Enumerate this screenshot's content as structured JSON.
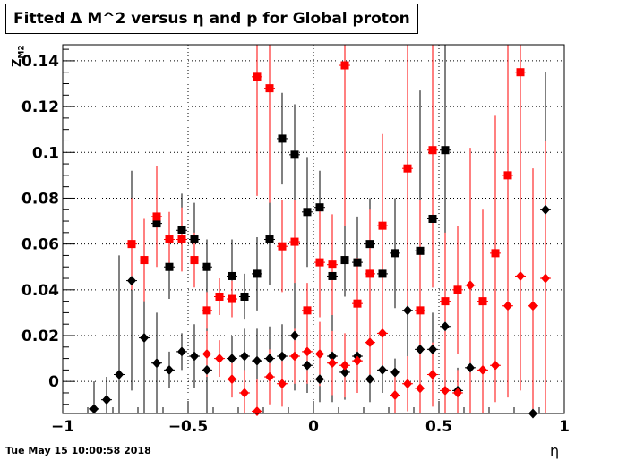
{
  "title": "Fitted Δ M^2 versus η and p for Global proton",
  "timestamp": "Tue May 15 10:00:58 2018",
  "chart_data": {
    "type": "scatter",
    "title": "Fitted Δ M^2 versus η and p for Global proton",
    "xlabel": "η",
    "ylabel_main": "Z",
    "ylabel_sub": "M2",
    "xlim": [
      -1,
      1
    ],
    "ylim": [
      -0.014,
      0.147
    ],
    "x_ticks": [
      -1,
      -0.5,
      0,
      0.5,
      1
    ],
    "x_tick_labels": [
      "−1",
      "−0.5",
      "0",
      "0.5",
      "1"
    ],
    "y_ticks": [
      0,
      0.02,
      0.04,
      0.06,
      0.08,
      0.1,
      0.12,
      0.14
    ],
    "y_tick_labels": [
      "0",
      "0.02",
      "0.04",
      "0.06",
      "0.08",
      "0.1",
      "0.12",
      "0.14"
    ],
    "grid": true,
    "series": [
      {
        "marker": "square",
        "color": "#000000",
        "points": [
          {
            "x": -0.625,
            "y": 0.069,
            "err": 0.012
          },
          {
            "x": -0.575,
            "y": 0.05,
            "err": 0.014
          },
          {
            "x": -0.525,
            "y": 0.066,
            "err": 0.016
          },
          {
            "x": -0.475,
            "y": 0.062,
            "err": 0.016
          },
          {
            "x": -0.425,
            "y": 0.05,
            "err": 0.012
          },
          {
            "x": -0.325,
            "y": 0.046,
            "err": 0.016
          },
          {
            "x": -0.275,
            "y": 0.037,
            "err": 0.01
          },
          {
            "x": -0.225,
            "y": 0.047,
            "err": 0.016
          },
          {
            "x": -0.175,
            "y": 0.062,
            "err": 0.02
          },
          {
            "x": -0.125,
            "y": 0.106,
            "err": 0.02
          },
          {
            "x": -0.075,
            "y": 0.099,
            "err": 0.022
          },
          {
            "x": -0.025,
            "y": 0.074,
            "err": 0.024
          },
          {
            "x": 0.025,
            "y": 0.076,
            "err": 0.016
          },
          {
            "x": 0.075,
            "y": 0.046,
            "err": 0.01
          },
          {
            "x": 0.125,
            "y": 0.053,
            "err": 0.016
          },
          {
            "x": 0.175,
            "y": 0.052,
            "err": 0.02
          },
          {
            "x": 0.225,
            "y": 0.06,
            "err": 0.02
          },
          {
            "x": 0.275,
            "y": 0.047,
            "err": 0.02
          },
          {
            "x": 0.325,
            "y": 0.056,
            "err": 0.024
          },
          {
            "x": 0.425,
            "y": 0.057,
            "err": 0.07
          },
          {
            "x": 0.475,
            "y": 0.071,
            "err": 0.03
          },
          {
            "x": 0.525,
            "y": 0.101,
            "err": 0.06
          }
        ]
      },
      {
        "marker": "diamond",
        "color": "#000000",
        "points": [
          {
            "x": -0.875,
            "y": -0.012,
            "err": 0.012
          },
          {
            "x": -0.825,
            "y": -0.008,
            "err": 0.01
          },
          {
            "x": -0.775,
            "y": 0.003,
            "err": 0.052
          },
          {
            "x": -0.725,
            "y": 0.044,
            "err": 0.048
          },
          {
            "x": -0.675,
            "y": 0.019,
            "err": 0.05
          },
          {
            "x": -0.625,
            "y": 0.008,
            "err": 0.022
          },
          {
            "x": -0.575,
            "y": 0.005,
            "err": 0.008
          },
          {
            "x": -0.525,
            "y": 0.013,
            "err": 0.008
          },
          {
            "x": -0.475,
            "y": 0.011,
            "err": 0.014
          },
          {
            "x": -0.425,
            "y": 0.005,
            "err": 0.024
          },
          {
            "x": -0.325,
            "y": 0.01,
            "err": 0.01
          },
          {
            "x": -0.275,
            "y": 0.011,
            "err": 0.012
          },
          {
            "x": -0.225,
            "y": 0.009,
            "err": 0.014
          },
          {
            "x": -0.175,
            "y": 0.01,
            "err": 0.014
          },
          {
            "x": -0.125,
            "y": 0.011,
            "err": 0.014
          },
          {
            "x": -0.075,
            "y": 0.02,
            "err": 0.024
          },
          {
            "x": -0.025,
            "y": 0.007,
            "err": 0.012
          },
          {
            "x": 0.025,
            "y": 0.001,
            "err": 0.01
          },
          {
            "x": 0.075,
            "y": 0.011,
            "err": 0.02
          },
          {
            "x": 0.125,
            "y": 0.004,
            "err": 0.012
          },
          {
            "x": 0.175,
            "y": 0.011,
            "err": 0.014
          },
          {
            "x": 0.225,
            "y": 0.001,
            "err": 0.01
          },
          {
            "x": 0.275,
            "y": 0.005,
            "err": 0.01
          },
          {
            "x": 0.325,
            "y": 0.004,
            "err": 0.006
          },
          {
            "x": 0.375,
            "y": 0.031,
            "err": 0.03
          },
          {
            "x": 0.425,
            "y": 0.014,
            "err": 0.032
          },
          {
            "x": 0.475,
            "y": 0.014,
            "err": 0.016
          },
          {
            "x": 0.525,
            "y": 0.024,
            "err": 0.024
          },
          {
            "x": 0.575,
            "y": -0.004,
            "err": 0.01
          },
          {
            "x": 0.625,
            "y": 0.006,
            "err": 0.02
          },
          {
            "x": 0.875,
            "y": -0.014,
            "err": 0.012
          },
          {
            "x": 0.925,
            "y": 0.075,
            "err": 0.06
          }
        ]
      },
      {
        "marker": "square",
        "color": "#ff0000",
        "points": [
          {
            "x": -0.725,
            "y": 0.06,
            "err": 0.02
          },
          {
            "x": -0.675,
            "y": 0.053,
            "err": 0.018
          },
          {
            "x": -0.625,
            "y": 0.072,
            "err": 0.022
          },
          {
            "x": -0.575,
            "y": 0.062,
            "err": 0.012
          },
          {
            "x": -0.525,
            "y": 0.062,
            "err": 0.014
          },
          {
            "x": -0.475,
            "y": 0.053,
            "err": 0.012
          },
          {
            "x": -0.425,
            "y": 0.031,
            "err": 0.008
          },
          {
            "x": -0.375,
            "y": 0.037,
            "err": 0.008
          },
          {
            "x": -0.325,
            "y": 0.036,
            "err": 0.008
          },
          {
            "x": -0.225,
            "y": 0.133,
            "err": 0.052
          },
          {
            "x": -0.175,
            "y": 0.128,
            "err": 0.05
          },
          {
            "x": -0.125,
            "y": 0.059,
            "err": 0.02
          },
          {
            "x": -0.075,
            "y": 0.061,
            "err": 0.018
          },
          {
            "x": -0.025,
            "y": 0.031,
            "err": 0.012
          },
          {
            "x": 0.025,
            "y": 0.052,
            "err": 0.024
          },
          {
            "x": 0.075,
            "y": 0.051,
            "err": 0.022
          },
          {
            "x": 0.125,
            "y": 0.138,
            "err": 0.07
          },
          {
            "x": 0.175,
            "y": 0.034,
            "err": 0.02
          },
          {
            "x": 0.225,
            "y": 0.047,
            "err": 0.028
          },
          {
            "x": 0.275,
            "y": 0.068,
            "err": 0.04
          },
          {
            "x": 0.375,
            "y": 0.093,
            "err": 0.06
          },
          {
            "x": 0.425,
            "y": 0.031,
            "err": 0.048
          },
          {
            "x": 0.475,
            "y": 0.101,
            "err": 0.06
          },
          {
            "x": 0.525,
            "y": 0.035,
            "err": 0.03
          },
          {
            "x": 0.575,
            "y": 0.04,
            "err": 0.028
          },
          {
            "x": 0.675,
            "y": 0.035,
            "err": 0.04
          },
          {
            "x": 0.725,
            "y": 0.056,
            "err": 0.06
          },
          {
            "x": 0.775,
            "y": 0.09,
            "err": 0.06
          },
          {
            "x": 0.825,
            "y": 0.135,
            "err": 0.1
          }
        ]
      },
      {
        "marker": "diamond",
        "color": "#ff0000",
        "points": [
          {
            "x": -0.425,
            "y": 0.012,
            "err": 0.01
          },
          {
            "x": -0.375,
            "y": 0.01,
            "err": 0.008
          },
          {
            "x": -0.325,
            "y": 0.001,
            "err": 0.008
          },
          {
            "x": -0.275,
            "y": -0.005,
            "err": 0.01
          },
          {
            "x": -0.225,
            "y": -0.013,
            "err": 0.014
          },
          {
            "x": -0.175,
            "y": 0.002,
            "err": 0.012
          },
          {
            "x": -0.125,
            "y": -0.001,
            "err": 0.01
          },
          {
            "x": -0.075,
            "y": 0.011,
            "err": 0.012
          },
          {
            "x": -0.025,
            "y": 0.013,
            "err": 0.014
          },
          {
            "x": 0.025,
            "y": 0.012,
            "err": 0.014
          },
          {
            "x": 0.075,
            "y": 0.008,
            "err": 0.014
          },
          {
            "x": 0.125,
            "y": 0.007,
            "err": 0.014
          },
          {
            "x": 0.175,
            "y": 0.009,
            "err": 0.014
          },
          {
            "x": 0.225,
            "y": 0.017,
            "err": 0.016
          },
          {
            "x": 0.275,
            "y": 0.021,
            "err": 0.016
          },
          {
            "x": 0.325,
            "y": -0.006,
            "err": 0.01
          },
          {
            "x": 0.375,
            "y": -0.001,
            "err": 0.012
          },
          {
            "x": 0.425,
            "y": -0.003,
            "err": 0.012
          },
          {
            "x": 0.475,
            "y": 0.003,
            "err": 0.014
          },
          {
            "x": 0.525,
            "y": -0.004,
            "err": 0.01
          },
          {
            "x": 0.575,
            "y": -0.005,
            "err": 0.01
          },
          {
            "x": 0.625,
            "y": 0.042,
            "err": 0.06
          },
          {
            "x": 0.675,
            "y": 0.005,
            "err": 0.02
          },
          {
            "x": 0.725,
            "y": 0.007,
            "err": 0.016
          },
          {
            "x": 0.775,
            "y": 0.033,
            "err": 0.04
          },
          {
            "x": 0.825,
            "y": 0.046,
            "err": 0.05
          },
          {
            "x": 0.875,
            "y": 0.033,
            "err": 0.06
          },
          {
            "x": 0.925,
            "y": 0.045,
            "err": 0.06
          }
        ]
      }
    ]
  }
}
